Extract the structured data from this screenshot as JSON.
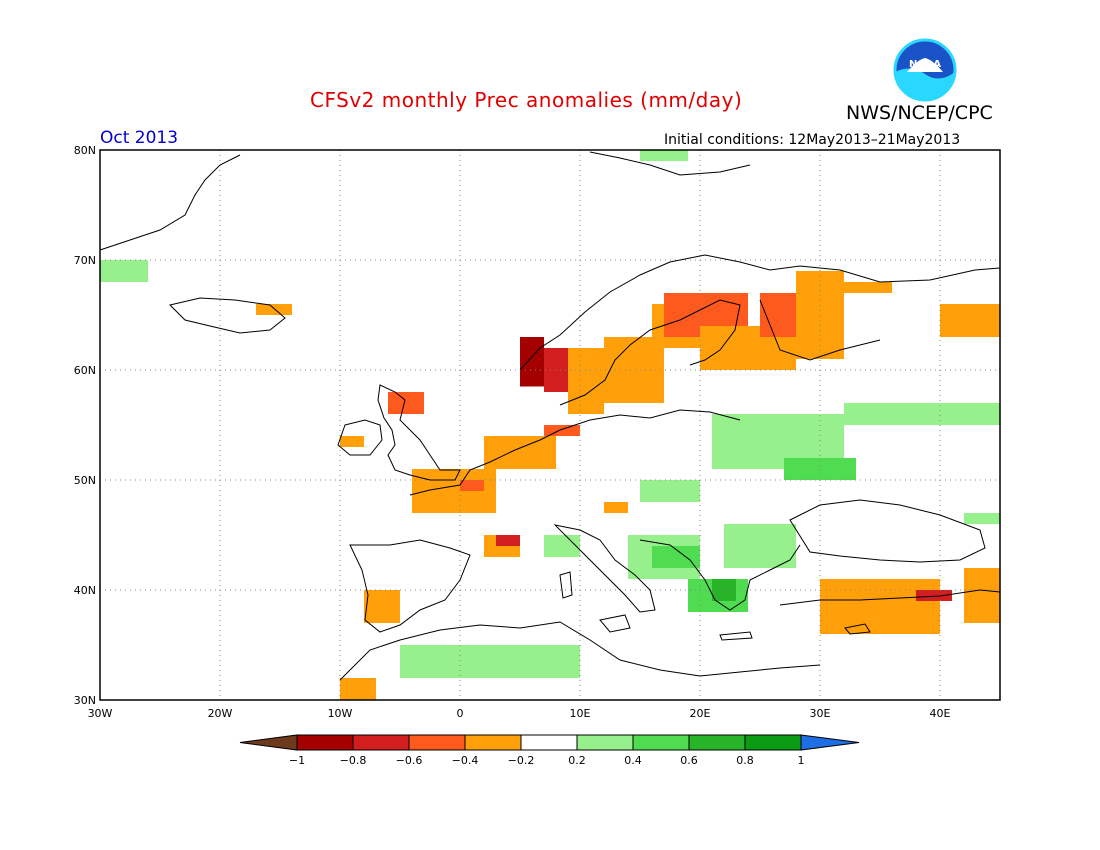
{
  "header": {
    "title": "CFSv2 monthly Prec anomalies (mm/day)",
    "agency": "NWS/NCEP/CPC",
    "month": "Oct 2013",
    "initial_conditions": "Initial conditions: 12May2013–21May2013",
    "logo_text": "NOAA"
  },
  "map": {
    "lon_range": [
      -30,
      45
    ],
    "lat_range": [
      30,
      80
    ],
    "lon_ticks": [
      {
        "lon": -30,
        "label": "30W"
      },
      {
        "lon": -20,
        "label": "20W"
      },
      {
        "lon": -10,
        "label": "10W"
      },
      {
        "lon": 0,
        "label": "0"
      },
      {
        "lon": 10,
        "label": "10E"
      },
      {
        "lon": 20,
        "label": "20E"
      },
      {
        "lon": 30,
        "label": "30E"
      },
      {
        "lon": 40,
        "label": "40E"
      }
    ],
    "lat_ticks": [
      {
        "lat": 30,
        "label": "30N"
      },
      {
        "lat": 40,
        "label": "40N"
      },
      {
        "lat": 50,
        "label": "50N"
      },
      {
        "lat": 60,
        "label": "60N"
      },
      {
        "lat": 70,
        "label": "70N"
      },
      {
        "lat": 80,
        "label": "80N"
      }
    ],
    "grid": true
  },
  "colorbar": {
    "labels": [
      "−1",
      "−0.8",
      "−0.6",
      "−0.4",
      "−0.2",
      "0.2",
      "0.4",
      "0.6",
      "0.8",
      "1"
    ],
    "low_color": "#6e3a1e",
    "high_color": "#1e6ee6",
    "colors": [
      "#a50000",
      "#d21e1e",
      "#ff5a1e",
      "#ffa00a",
      "#ffffff",
      "#96f08c",
      "#50dc50",
      "#28b428",
      "#0a9a14"
    ]
  },
  "anomaly_cells": [
    {
      "lon0": -30,
      "lon1": -26,
      "lat0": 68,
      "lat1": 70,
      "cls": 5
    },
    {
      "lon0": -17,
      "lon1": -14,
      "lat0": 65,
      "lat1": 66,
      "cls": 3
    },
    {
      "lon0": 15,
      "lon1": 19,
      "lat0": 79,
      "lat1": 80,
      "cls": 5
    },
    {
      "lon0": 5,
      "lon1": 7,
      "lat0": 58.5,
      "lat1": 63,
      "cls": 0
    },
    {
      "lon0": 7,
      "lon1": 9,
      "lat0": 58,
      "lat1": 62,
      "cls": 1
    },
    {
      "lon0": 9,
      "lon1": 12,
      "lat0": 56,
      "lat1": 62,
      "cls": 3
    },
    {
      "lon0": 12,
      "lon1": 17,
      "lat0": 57,
      "lat1": 63,
      "cls": 3
    },
    {
      "lon0": 16,
      "lon1": 22,
      "lat0": 62,
      "lat1": 66,
      "cls": 3
    },
    {
      "lon0": 17,
      "lon1": 24,
      "lat0": 63,
      "lat1": 67,
      "cls": 2
    },
    {
      "lon0": 20,
      "lon1": 28,
      "lat0": 60,
      "lat1": 64,
      "cls": 3
    },
    {
      "lon0": 25,
      "lon1": 29,
      "lat0": 63,
      "lat1": 67,
      "cls": 2
    },
    {
      "lon0": 28,
      "lon1": 32,
      "lat0": 61,
      "lat1": 69,
      "cls": 3
    },
    {
      "lon0": 32,
      "lon1": 36,
      "lat0": 67,
      "lat1": 68,
      "cls": 3
    },
    {
      "lon0": 40,
      "lon1": 45,
      "lat0": 63,
      "lat1": 66,
      "cls": 3
    },
    {
      "lon0": 7,
      "lon1": 10,
      "lat0": 54,
      "lat1": 55,
      "cls": 2
    },
    {
      "lon0": 2,
      "lon1": 8,
      "lat0": 51,
      "lat1": 54,
      "cls": 3
    },
    {
      "lon0": -6,
      "lon1": -3,
      "lat0": 56,
      "lat1": 58,
      "cls": 2
    },
    {
      "lon0": -10,
      "lon1": -8,
      "lat0": 53,
      "lat1": 54,
      "cls": 3
    },
    {
      "lon0": -4,
      "lon1": 3,
      "lat0": 47,
      "lat1": 51,
      "cls": 3
    },
    {
      "lon0": 0,
      "lon1": 2,
      "lat0": 49,
      "lat1": 50,
      "cls": 2
    },
    {
      "lon0": 2,
      "lon1": 5,
      "lat0": 43,
      "lat1": 45,
      "cls": 3
    },
    {
      "lon0": 3,
      "lon1": 5,
      "lat0": 44,
      "lat1": 45,
      "cls": 1
    },
    {
      "lon0": -8,
      "lon1": -5,
      "lat0": 37,
      "lat1": 40,
      "cls": 3
    },
    {
      "lon0": -10,
      "lon1": -7,
      "lat0": 30,
      "lat1": 32,
      "cls": 3
    },
    {
      "lon0": 12,
      "lon1": 14,
      "lat0": 47,
      "lat1": 48,
      "cls": 3
    },
    {
      "lon0": 30,
      "lon1": 40,
      "lat0": 36,
      "lat1": 41,
      "cls": 3
    },
    {
      "lon0": 38,
      "lon1": 41,
      "lat0": 39,
      "lat1": 40,
      "cls": 1
    },
    {
      "lon0": 42,
      "lon1": 45,
      "lat0": 37,
      "lat1": 42,
      "cls": 3
    },
    {
      "lon0": 21,
      "lon1": 32,
      "lat0": 51,
      "lat1": 56,
      "cls": 5
    },
    {
      "lon0": 27,
      "lon1": 33,
      "lat0": 50,
      "lat1": 52,
      "cls": 6
    },
    {
      "lon0": 32,
      "lon1": 45,
      "lat0": 55,
      "lat1": 57,
      "cls": 5
    },
    {
      "lon0": 15,
      "lon1": 20,
      "lat0": 48,
      "lat1": 50,
      "cls": 5
    },
    {
      "lon0": 14,
      "lon1": 20,
      "lat0": 41,
      "lat1": 45,
      "cls": 5
    },
    {
      "lon0": 16,
      "lon1": 20,
      "lat0": 42,
      "lat1": 44,
      "cls": 6
    },
    {
      "lon0": 19,
      "lon1": 24,
      "lat0": 38,
      "lat1": 41,
      "cls": 6
    },
    {
      "lon0": 21,
      "lon1": 23,
      "lat0": 39,
      "lat1": 41,
      "cls": 7
    },
    {
      "lon0": 22,
      "lon1": 28,
      "lat0": 42,
      "lat1": 46,
      "cls": 5
    },
    {
      "lon0": 7,
      "lon1": 10,
      "lat0": 43,
      "lat1": 45,
      "cls": 5
    },
    {
      "lon0": -5,
      "lon1": 10,
      "lat0": 32,
      "lat1": 35,
      "cls": 5
    },
    {
      "lon0": 42,
      "lon1": 45,
      "lat0": 46,
      "lat1": 47,
      "cls": 5
    }
  ]
}
